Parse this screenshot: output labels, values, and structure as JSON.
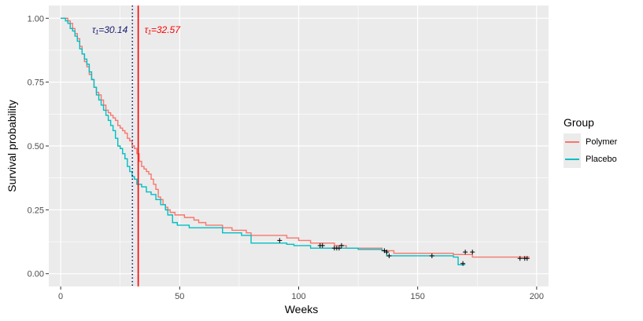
{
  "chart_data": {
    "type": "line",
    "subtype": "kaplan-meier step",
    "xlabel": "Weeks",
    "ylabel": "Survival probability",
    "xlim": [
      -5,
      205
    ],
    "ylim": [
      -0.05,
      1.05
    ],
    "xticks": [
      0,
      50,
      100,
      150,
      200
    ],
    "yticks": [
      0.0,
      0.25,
      0.5,
      0.75,
      1.0
    ],
    "ytick_labels": [
      "0.00",
      "0.25",
      "0.50",
      "0.75",
      "1.00"
    ],
    "grid": true,
    "legend": {
      "title": "Group",
      "position": "right"
    },
    "series": [
      {
        "name": "Polymer",
        "color": "#F8766D",
        "steps": [
          [
            0,
            1.0
          ],
          [
            3,
            0.99
          ],
          [
            4,
            0.98
          ],
          [
            5,
            0.96
          ],
          [
            6,
            0.94
          ],
          [
            7,
            0.92
          ],
          [
            8,
            0.89
          ],
          [
            9,
            0.86
          ],
          [
            10,
            0.83
          ],
          [
            11,
            0.81
          ],
          [
            12,
            0.78
          ],
          [
            13,
            0.76
          ],
          [
            14,
            0.73
          ],
          [
            15,
            0.71
          ],
          [
            16,
            0.7
          ],
          [
            17,
            0.68
          ],
          [
            18,
            0.66
          ],
          [
            19,
            0.64
          ],
          [
            20,
            0.63
          ],
          [
            21,
            0.62
          ],
          [
            22,
            0.61
          ],
          [
            23,
            0.6
          ],
          [
            24,
            0.58
          ],
          [
            25,
            0.57
          ],
          [
            26,
            0.56
          ],
          [
            27,
            0.55
          ],
          [
            28,
            0.53
          ],
          [
            29,
            0.52
          ],
          [
            30,
            0.5
          ],
          [
            31,
            0.49
          ],
          [
            32,
            0.47
          ],
          [
            33,
            0.44
          ],
          [
            34,
            0.42
          ],
          [
            35,
            0.41
          ],
          [
            36,
            0.4
          ],
          [
            37,
            0.39
          ],
          [
            38,
            0.37
          ],
          [
            39,
            0.35
          ],
          [
            40,
            0.33
          ],
          [
            41,
            0.3
          ],
          [
            42,
            0.29
          ],
          [
            43,
            0.27
          ],
          [
            44,
            0.26
          ],
          [
            45,
            0.25
          ],
          [
            46,
            0.24
          ],
          [
            48,
            0.23
          ],
          [
            52,
            0.22
          ],
          [
            56,
            0.21
          ],
          [
            58,
            0.2
          ],
          [
            61,
            0.19
          ],
          [
            68,
            0.18
          ],
          [
            72,
            0.17
          ],
          [
            78,
            0.16
          ],
          [
            80,
            0.15
          ],
          [
            95,
            0.14
          ],
          [
            100,
            0.13
          ],
          [
            105,
            0.12
          ],
          [
            115,
            0.11
          ],
          [
            120,
            0.1
          ],
          [
            135,
            0.09
          ],
          [
            140,
            0.08
          ],
          [
            165,
            0.075
          ],
          [
            173,
            0.065
          ]
        ],
        "end": 197,
        "censored": [
          [
            92,
            0.13
          ],
          [
            110,
            0.11
          ],
          [
            116,
            0.1
          ],
          [
            117,
            0.1
          ],
          [
            118,
            0.11
          ],
          [
            136,
            0.09
          ],
          [
            170,
            0.085
          ],
          [
            173,
            0.085
          ],
          [
            193,
            0.06
          ],
          [
            195,
            0.06
          ],
          [
            196,
            0.06
          ]
        ]
      },
      {
        "name": "Placebo",
        "color": "#00BFC4",
        "steps": [
          [
            0,
            1.0
          ],
          [
            2,
            0.99
          ],
          [
            3,
            0.98
          ],
          [
            4,
            0.96
          ],
          [
            5,
            0.95
          ],
          [
            6,
            0.93
          ],
          [
            7,
            0.91
          ],
          [
            8,
            0.88
          ],
          [
            9,
            0.86
          ],
          [
            10,
            0.84
          ],
          [
            11,
            0.82
          ],
          [
            12,
            0.79
          ],
          [
            13,
            0.76
          ],
          [
            14,
            0.73
          ],
          [
            15,
            0.7
          ],
          [
            16,
            0.68
          ],
          [
            17,
            0.66
          ],
          [
            18,
            0.64
          ],
          [
            19,
            0.62
          ],
          [
            20,
            0.6
          ],
          [
            21,
            0.58
          ],
          [
            22,
            0.56
          ],
          [
            23,
            0.53
          ],
          [
            24,
            0.5
          ],
          [
            25,
            0.49
          ],
          [
            26,
            0.47
          ],
          [
            27,
            0.45
          ],
          [
            28,
            0.42
          ],
          [
            29,
            0.4
          ],
          [
            30,
            0.38
          ],
          [
            31,
            0.37
          ],
          [
            32,
            0.35
          ],
          [
            34,
            0.34
          ],
          [
            36,
            0.32
          ],
          [
            38,
            0.31
          ],
          [
            40,
            0.29
          ],
          [
            42,
            0.27
          ],
          [
            44,
            0.25
          ],
          [
            45,
            0.23
          ],
          [
            47,
            0.2
          ],
          [
            49,
            0.19
          ],
          [
            54,
            0.18
          ],
          [
            68,
            0.16
          ],
          [
            76,
            0.15
          ],
          [
            80,
            0.12
          ],
          [
            95,
            0.115
          ],
          [
            98,
            0.11
          ],
          [
            105,
            0.1
          ],
          [
            125,
            0.095
          ],
          [
            135,
            0.09
          ],
          [
            137,
            0.07
          ],
          [
            165,
            0.065
          ],
          [
            167,
            0.035
          ]
        ],
        "end": 170,
        "censored": [
          [
            109,
            0.11
          ],
          [
            115,
            0.1
          ],
          [
            137,
            0.085
          ],
          [
            138,
            0.07
          ],
          [
            156,
            0.07
          ],
          [
            169,
            0.04
          ]
        ]
      }
    ],
    "reference_lines": [
      {
        "x": 30.14,
        "label": "τ₁=30.14",
        "color": "#191970",
        "style": "dotted",
        "label_side": "left"
      },
      {
        "x": 32.57,
        "label": "τ₁=32.57",
        "color": "#FF0000",
        "style": "solid",
        "label_side": "right"
      }
    ]
  }
}
